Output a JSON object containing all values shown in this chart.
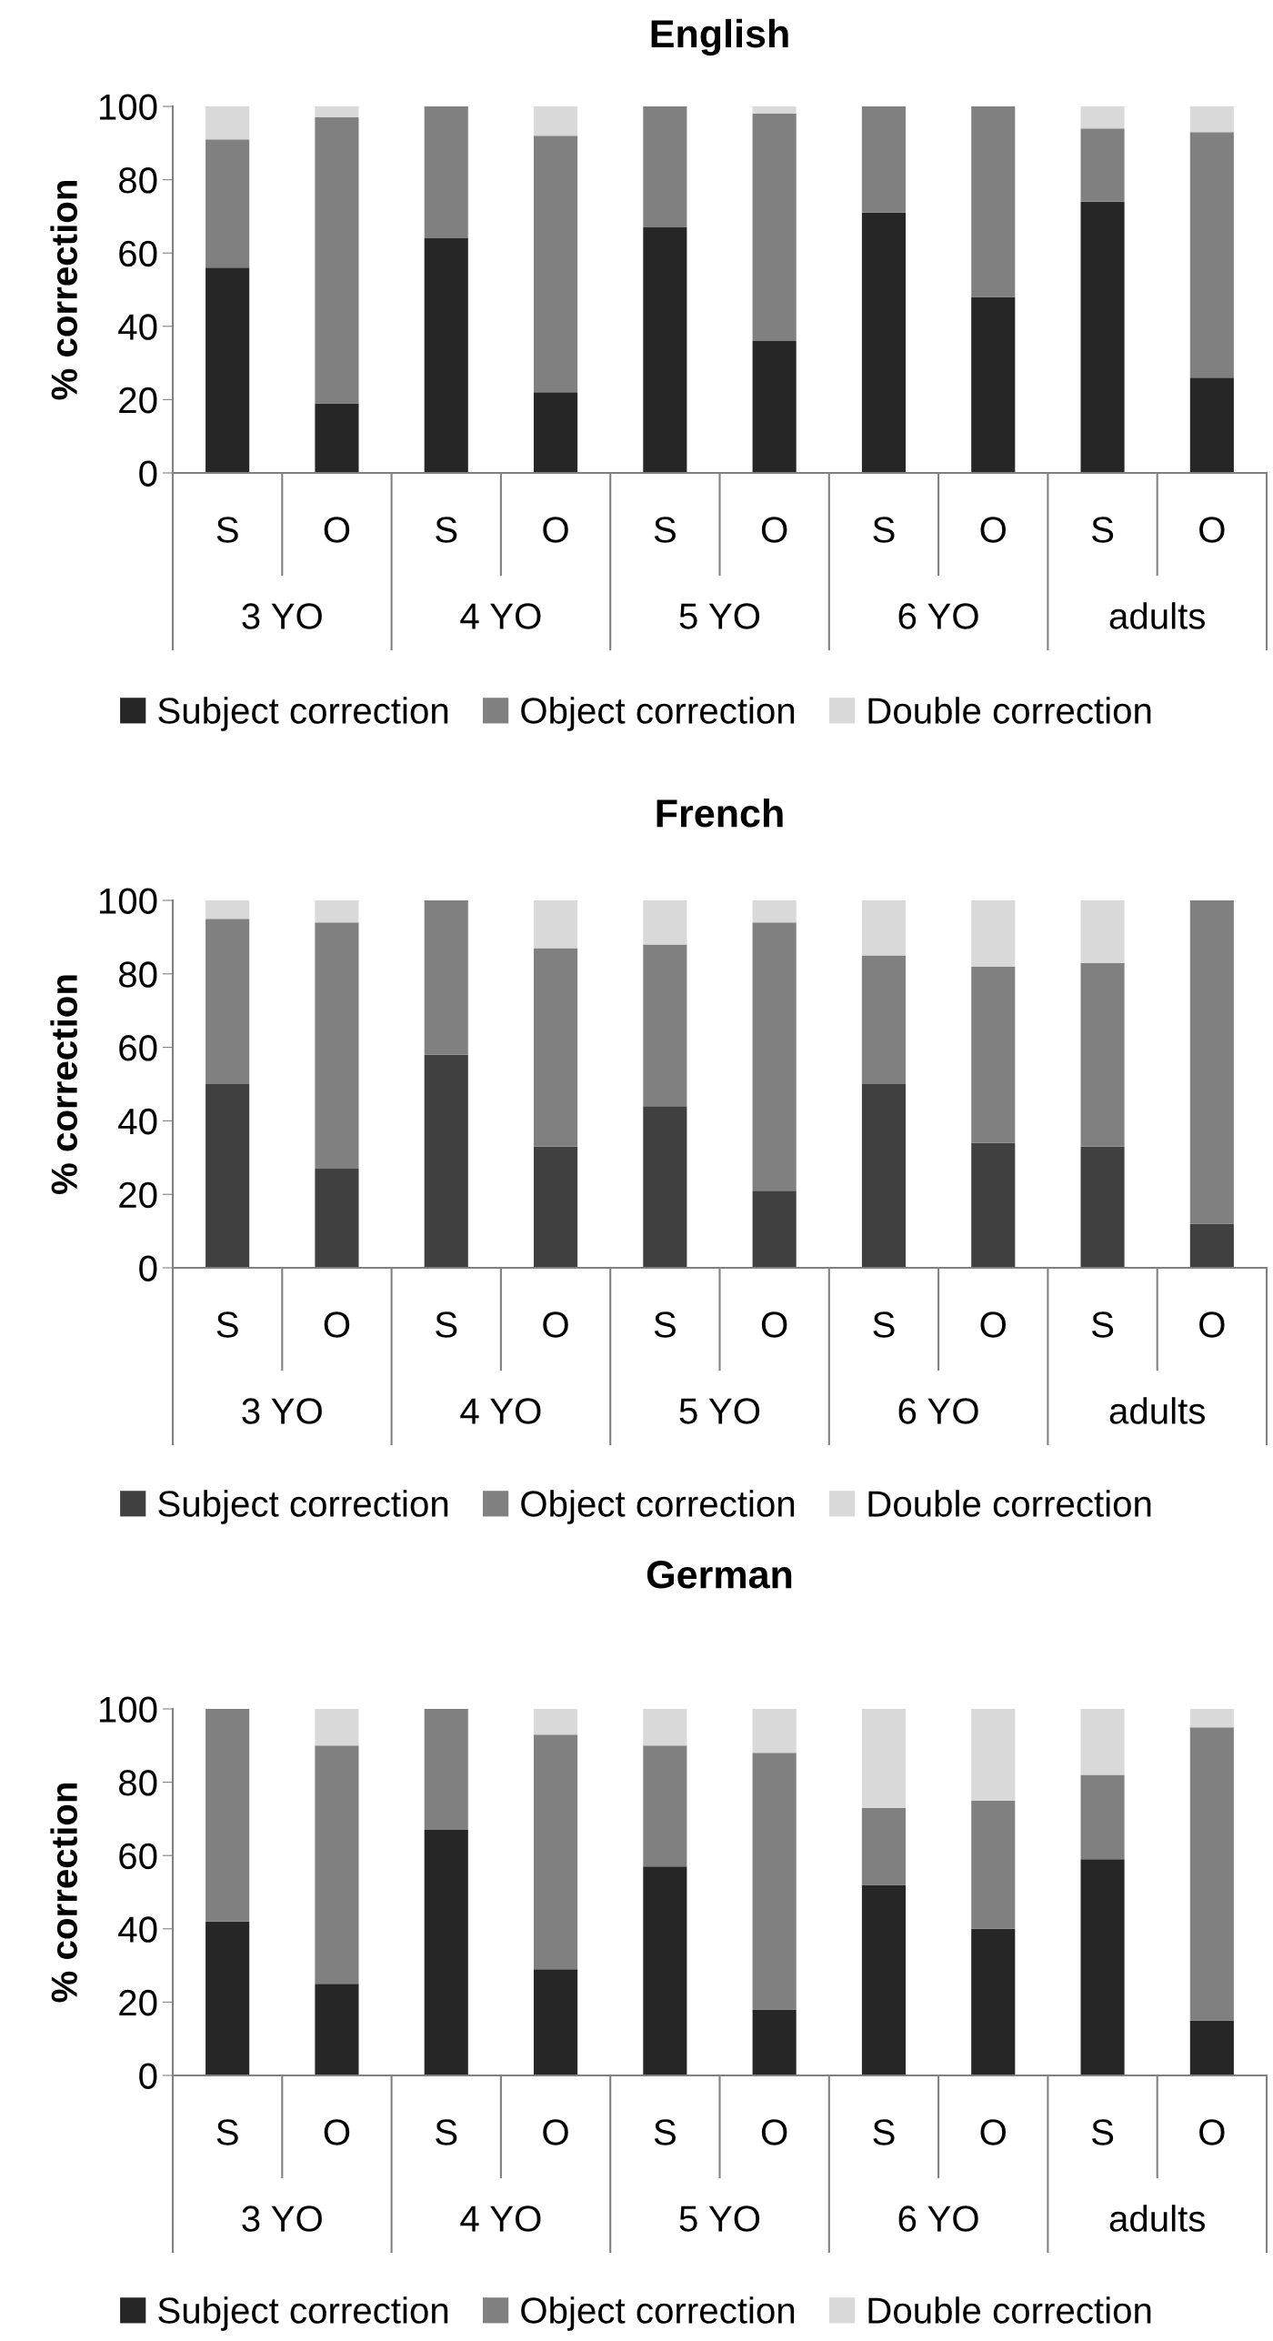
{
  "chart_data": [
    {
      "type": "bar",
      "title": "English",
      "ylabel": "% correction",
      "stacked": true,
      "legend": "bottom",
      "categories": [
        "S",
        "O",
        "S",
        "O",
        "S",
        "O",
        "S",
        "O",
        "S",
        "O"
      ],
      "annotations": [
        "3 YO",
        "4 YO",
        "5 YO",
        "6 YO",
        "adults"
      ],
      "ylim": [
        0,
        100
      ],
      "yticks": [
        0,
        20,
        40,
        60,
        80,
        100
      ],
      "grid": false,
      "series": [
        {
          "name": "Subject correction",
          "color": "#262626",
          "values": [
            56,
            19,
            64,
            22,
            67,
            36,
            71,
            48,
            74,
            26
          ]
        },
        {
          "name": "Object correction",
          "color": "#808080",
          "values": [
            35,
            78,
            36,
            70,
            33,
            62,
            29,
            52,
            20,
            67
          ]
        },
        {
          "name": "Double correction",
          "color": "#d9d9d9",
          "values": [
            9,
            3,
            0,
            8,
            0,
            2,
            0,
            0,
            6,
            7
          ]
        }
      ]
    },
    {
      "type": "bar",
      "title": "French",
      "ylabel": "% correction",
      "stacked": true,
      "legend": "bottom",
      "categories": [
        "S",
        "O",
        "S",
        "O",
        "S",
        "O",
        "S",
        "O",
        "S",
        "O"
      ],
      "annotations": [
        "3 YO",
        "4 YO",
        "5 YO",
        "6 YO",
        "adults"
      ],
      "ylim": [
        0,
        100
      ],
      "yticks": [
        0,
        20,
        40,
        60,
        80,
        100
      ],
      "grid": false,
      "series": [
        {
          "name": "Subject correction",
          "color": "#404040",
          "values": [
            50,
            27,
            58,
            33,
            44,
            21,
            50,
            34,
            33,
            12
          ]
        },
        {
          "name": "Object correction",
          "color": "#808080",
          "values": [
            45,
            67,
            42,
            54,
            44,
            73,
            35,
            48,
            50,
            88
          ]
        },
        {
          "name": "Double correction",
          "color": "#d9d9d9",
          "values": [
            5,
            6,
            0,
            13,
            12,
            6,
            15,
            18,
            17,
            0
          ]
        }
      ]
    },
    {
      "type": "bar",
      "title": "German",
      "ylabel": "% correction",
      "stacked": true,
      "legend": "bottom",
      "categories": [
        "S",
        "O",
        "S",
        "O",
        "S",
        "O",
        "S",
        "O",
        "S",
        "O"
      ],
      "annotations": [
        "3 YO",
        "4 YO",
        "5 YO",
        "6 YO",
        "adults"
      ],
      "ylim": [
        0,
        100
      ],
      "yticks": [
        0,
        20,
        40,
        60,
        80,
        100
      ],
      "grid": false,
      "series": [
        {
          "name": "Subject correction",
          "color": "#262626",
          "values": [
            42,
            25,
            67,
            29,
            57,
            18,
            52,
            40,
            59,
            15
          ]
        },
        {
          "name": "Object correction",
          "color": "#808080",
          "values": [
            58,
            65,
            33,
            64,
            33,
            70,
            21,
            35,
            23,
            80
          ]
        },
        {
          "name": "Double correction",
          "color": "#d9d9d9",
          "values": [
            0,
            10,
            0,
            7,
            10,
            12,
            27,
            25,
            18,
            5
          ]
        }
      ]
    }
  ]
}
